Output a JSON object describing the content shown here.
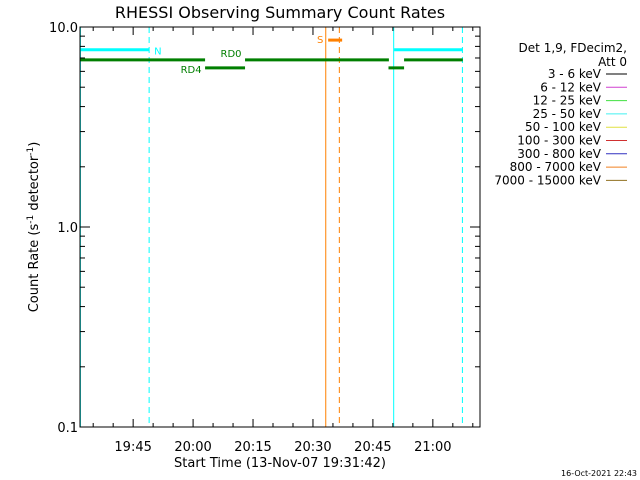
{
  "chart_data": {
    "type": "line",
    "title": "RHESSI Observing Summary Count Rates",
    "xlabel": "Start Time (13-Nov-07 19:31:42)",
    "ylabel_main": "Count Rate (s",
    "ylabel_sup1": "-1",
    "ylabel_mid": " detector",
    "ylabel_sup2": "-1",
    "ylabel_end": ")",
    "x_unit": "minutes",
    "xlim": [
      1171.7,
      1271.8
    ],
    "ylim": [
      0.1,
      10.0
    ],
    "y_scale": "log",
    "x_ticks": [
      {
        "value": 1185,
        "label": "19:45"
      },
      {
        "value": 1200,
        "label": "20:00"
      },
      {
        "value": 1215,
        "label": "20:15"
      },
      {
        "value": 1230,
        "label": "20:30"
      },
      {
        "value": 1245,
        "label": "20:45"
      },
      {
        "value": 1260,
        "label": "21:00"
      }
    ],
    "y_ticks": [
      {
        "value": 0.1,
        "label": "0.1"
      },
      {
        "value": 1.0,
        "label": "1.0"
      },
      {
        "value": 10.0,
        "label": "10.0"
      }
    ],
    "legend": {
      "placement": "right",
      "header_line1": "Det 1,9, FDecim‌2,",
      "header_line2": "Att 0",
      "entries": [
        {
          "label": "3 - 6 keV",
          "color": "#000000"
        },
        {
          "label": "6 - 12 keV",
          "color": "#d040d0"
        },
        {
          "label": "12 - 25 keV",
          "color": "#40e040"
        },
        {
          "label": "25 - 50 keV",
          "color": "#40f0f0"
        },
        {
          "label": "50 - 100 keV",
          "color": "#e0e040"
        },
        {
          "label": "100 - 300 keV",
          "color": "#d03030"
        },
        {
          "label": "300 - 800 keV",
          "color": "#3030c0"
        },
        {
          "label": "800 - 7000 keV",
          "color": "#f08020"
        },
        {
          "label": "7000 - 15000 keV",
          "color": "#907020"
        }
      ]
    },
    "flag_bars": [
      {
        "label": "N",
        "color": "#00ffff",
        "y": 7.7,
        "segments": [
          [
            1171.7,
            1189.0
          ],
          [
            1250.3,
            1267.5
          ]
        ]
      },
      {
        "label": "RD0",
        "color": "#007f00",
        "y": 6.85,
        "segments": [
          [
            1171.7,
            1203.0
          ],
          [
            1213.0,
            1249.0
          ],
          [
            1252.8,
            1267.5
          ]
        ]
      },
      {
        "label": "RD4",
        "color": "#007f00",
        "y": 6.25,
        "segments": [
          [
            1203.0,
            1213.0
          ],
          [
            1248.9,
            1252.8
          ]
        ]
      },
      {
        "label": "S",
        "color": "#ff8000",
        "y": 8.6,
        "segments": [
          [
            1233.8,
            1237.3
          ]
        ]
      }
    ],
    "vlines": [
      {
        "x": 1171.8,
        "color": "#00ffff",
        "dash": false
      },
      {
        "x": 1189.0,
        "color": "#00ffff",
        "dash": true
      },
      {
        "x": 1233.2,
        "color": "#ff8000",
        "dash": false
      },
      {
        "x": 1236.6,
        "color": "#ff8000",
        "dash": true
      },
      {
        "x": 1250.2,
        "color": "#00ffff",
        "dash": false
      },
      {
        "x": 1267.4,
        "color": "#00ffff",
        "dash": true
      }
    ]
  },
  "footer": {
    "date": "16-Oct-2021 22:43"
  }
}
